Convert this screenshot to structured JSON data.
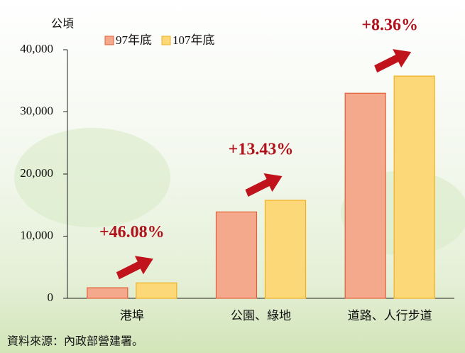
{
  "chart_data": {
    "type": "bar",
    "y_unit": "公頃",
    "categories": [
      "港埠",
      "公園、綠地",
      "道路、人行步道"
    ],
    "series": [
      {
        "name": "97年底",
        "color": "#f5a98c",
        "border": "#e0603a",
        "values": [
          1700,
          13900,
          33000
        ]
      },
      {
        "name": "107年底",
        "color": "#fdd878",
        "border": "#f0b020",
        "values": [
          2480,
          15770,
          35760
        ]
      }
    ],
    "ylim": [
      0,
      40000
    ],
    "yticks": [
      0,
      {
        "value": 10000,
        "label": "10,000"
      },
      {
        "value": 20000,
        "label": "20,000"
      },
      {
        "value": 30000,
        "label": "30,000"
      },
      {
        "value": 40000,
        "label": "40,000"
      }
    ],
    "annotations": [
      "+46.08%",
      "+13.43%",
      "+8.36%"
    ],
    "source": "資料來源：內政部營建署。"
  }
}
